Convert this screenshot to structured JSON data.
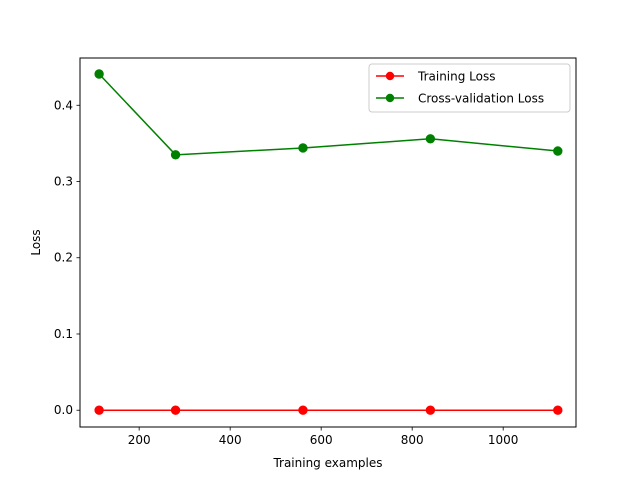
{
  "chart_data": {
    "type": "line",
    "title": "",
    "xlabel": "Training examples",
    "ylabel": "Loss",
    "xlim": [
      70,
      1160
    ],
    "ylim": [
      -0.022,
      0.462
    ],
    "x_ticks": [
      200,
      400,
      600,
      800,
      1000
    ],
    "y_ticks": [
      0.0,
      0.1,
      0.2,
      0.3,
      0.4
    ],
    "x_tick_labels": [
      "200",
      "400",
      "600",
      "800",
      "1000"
    ],
    "y_tick_labels": [
      "0.0",
      "0.1",
      "0.2",
      "0.3",
      "0.4"
    ],
    "grid": false,
    "legend_position": "upper right",
    "x": [
      112,
      280,
      560,
      840,
      1120
    ],
    "series": [
      {
        "name": "Training Loss",
        "color": "#ff0000",
        "marker": "circle",
        "values": [
          0.0,
          0.0,
          0.0,
          0.0,
          0.0
        ]
      },
      {
        "name": "Cross-validation Loss",
        "color": "#008000",
        "marker": "circle",
        "values": [
          0.441,
          0.335,
          0.344,
          0.356,
          0.34
        ]
      }
    ]
  }
}
